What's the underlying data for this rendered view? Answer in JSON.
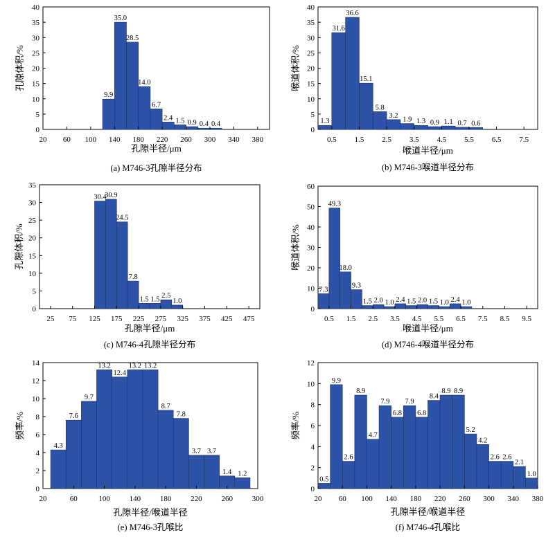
{
  "chart_data": [
    {
      "type": "bar",
      "title": "",
      "caption": "(a) M746-3孔隙半径分布",
      "xlabel": "孔隙半径/μm",
      "ylabel": "孔隙体积/%",
      "ylim": [
        0,
        40
      ],
      "yticks": [
        0,
        5,
        10,
        15,
        20,
        25,
        30,
        35,
        40
      ],
      "xlim": [
        20,
        400
      ],
      "xticks": [
        20,
        60,
        100,
        140,
        180,
        220,
        260,
        300,
        340,
        380
      ],
      "xtick_labels": [
        "20",
        "60",
        "100",
        "140",
        "180",
        "220",
        "260",
        "300",
        "340",
        "380"
      ],
      "bar_width": 20,
      "x": [
        110,
        130,
        150,
        170,
        190,
        210,
        230,
        250,
        270,
        290,
        310
      ],
      "values": [
        0,
        9.9,
        35.0,
        28.5,
        14.0,
        6.7,
        2.4,
        1.5,
        0.9,
        0.4,
        0.4
      ],
      "labels": [
        "",
        "9.9",
        "35.0",
        "28.5",
        "14.0",
        "6.7",
        "2.4",
        "1.5",
        "0.9",
        "0.4",
        "0.4"
      ],
      "color": "#2d53a8",
      "grid": false
    },
    {
      "type": "bar",
      "title": "",
      "caption": "(b) M746-3喉道半径分布",
      "xlabel": "喉道半径/μm",
      "ylabel": "喉道体积/%",
      "ylim": [
        0,
        40
      ],
      "yticks": [
        0,
        5,
        10,
        15,
        20,
        25,
        30,
        35,
        40
      ],
      "xlim": [
        0,
        8
      ],
      "xticks": [
        0.5,
        1.5,
        2.5,
        3.5,
        4.5,
        5.5,
        6.5,
        7.5
      ],
      "xtick_labels": [
        "0.5",
        "1.5",
        "2.5",
        "3.5",
        "4.5",
        "5.5",
        "6.5",
        "7.5"
      ],
      "bar_width": 0.5,
      "x": [
        0.25,
        0.75,
        1.25,
        1.75,
        2.25,
        2.75,
        3.25,
        3.75,
        4.25,
        4.75,
        5.25,
        5.75
      ],
      "values": [
        1.3,
        31.6,
        36.6,
        15.1,
        5.8,
        3.2,
        1.9,
        1.3,
        0.9,
        1.1,
        0.7,
        0.6
      ],
      "labels": [
        "1.3",
        "31.6",
        "36.6",
        "15.1",
        "5.8",
        "3.2",
        "1.9",
        "1.3",
        "0.9",
        "1.1",
        "0.7",
        "0.6"
      ],
      "color": "#2d53a8",
      "grid": false
    },
    {
      "type": "bar",
      "title": "",
      "caption": "(c) M746-4孔隙半径分布",
      "xlabel": "孔隙半径/μm",
      "ylabel": "孔隙体积/%",
      "ylim": [
        0,
        35
      ],
      "yticks": [
        0,
        5,
        10,
        15,
        20,
        25,
        30,
        35
      ],
      "xlim": [
        0,
        500
      ],
      "xticks": [
        25,
        75,
        125,
        175,
        225,
        275,
        325,
        375,
        425,
        475
      ],
      "xtick_labels": [
        "25",
        "75",
        "125",
        "175",
        "225",
        "275",
        "325",
        "375",
        "425",
        "475"
      ],
      "bar_width": 25,
      "x": [
        137.5,
        162.5,
        187.5,
        212.5,
        237.5,
        262.5,
        287.5,
        312.5
      ],
      "values": [
        30.4,
        30.9,
        24.5,
        7.8,
        1.5,
        1.5,
        2.5,
        1.0
      ],
      "labels": [
        "30.4",
        "30.9",
        "24.5",
        "7.8",
        "1.5",
        "1.5",
        "2.5",
        "1.0"
      ],
      "color": "#2d53a8",
      "grid": false
    },
    {
      "type": "bar",
      "title": "",
      "caption": "(d) M746-4喉道半径分布",
      "xlabel": "喉道半径/μm",
      "ylabel": "喉道体积/%",
      "ylim": [
        0,
        60
      ],
      "yticks": [
        0,
        10,
        20,
        30,
        40,
        50,
        60
      ],
      "xlim": [
        0,
        10
      ],
      "xticks": [
        0.5,
        1.5,
        2.5,
        3.5,
        4.5,
        5.5,
        6.5,
        7.5,
        8.5,
        9.5
      ],
      "xtick_labels": [
        "0.5",
        "1.5",
        "2.5",
        "3.5",
        "4.5",
        "5.5",
        "6.5",
        "7.5",
        "8.5",
        "9.5"
      ],
      "bar_width": 0.5,
      "x": [
        0.25,
        0.75,
        1.25,
        1.75,
        2.25,
        2.75,
        3.25,
        3.75,
        4.25,
        4.75,
        5.25,
        5.75,
        6.25,
        6.75
      ],
      "values": [
        7.3,
        49.3,
        18.0,
        9.3,
        1.5,
        2.0,
        1.0,
        2.4,
        1.5,
        2.0,
        1.5,
        1.0,
        2.4,
        1.0
      ],
      "labels": [
        "7.3",
        "49.3",
        "18.0",
        "9.3",
        "1.5",
        "2.0",
        "1.0",
        "2.4",
        "1.5",
        "2.0",
        "1.5",
        "1.0",
        "2.4",
        "1.0"
      ],
      "color": "#2d53a8",
      "grid": false
    },
    {
      "type": "bar",
      "title": "",
      "caption": "(e) M746-3孔喉比",
      "xlabel": "孔隙半径/喉道半径",
      "ylabel": "频率/%",
      "ylim": [
        0,
        14
      ],
      "yticks": [
        0,
        2,
        4,
        6,
        8,
        10,
        12,
        14
      ],
      "xlim": [
        20,
        300
      ],
      "xticks": [
        20,
        60,
        100,
        140,
        180,
        220,
        260,
        300
      ],
      "xtick_labels": [
        "20",
        "60",
        "100",
        "140",
        "180",
        "220",
        "260",
        "300"
      ],
      "bar_width": 20,
      "x": [
        40,
        60,
        80,
        100,
        120,
        140,
        160,
        180,
        200,
        220,
        240,
        260,
        280
      ],
      "values": [
        4.3,
        7.6,
        9.7,
        13.2,
        12.4,
        13.2,
        13.2,
        8.7,
        7.8,
        3.7,
        3.7,
        1.4,
        1.2
      ],
      "labels": [
        "4.3",
        "7.6",
        "9.7",
        "13.2",
        "12.4",
        "13.2",
        "13.2",
        "8.7",
        "7.8",
        "3.7",
        "3.7",
        "1.4",
        "1.2"
      ],
      "color": "#2d53a8",
      "grid": false
    },
    {
      "type": "bar",
      "title": "",
      "caption": "(f) M746-4孔喉比",
      "xlabel": "孔隙半径/喉道半径",
      "ylabel": "频率/%",
      "ylim": [
        0,
        12
      ],
      "yticks": [
        0,
        2,
        4,
        6,
        8,
        10,
        12
      ],
      "xlim": [
        20,
        380
      ],
      "xticks": [
        20,
        60,
        100,
        140,
        180,
        220,
        260,
        300,
        340,
        380
      ],
      "xtick_labels": [
        "20",
        "60",
        "100",
        "140",
        "180",
        "220",
        "260",
        "300",
        "340",
        "380"
      ],
      "bar_width": 20,
      "x": [
        30,
        50,
        70,
        90,
        110,
        130,
        150,
        170,
        190,
        210,
        230,
        250,
        270,
        290,
        310,
        330,
        350,
        370
      ],
      "values": [
        0.5,
        9.9,
        2.6,
        8.9,
        4.7,
        7.9,
        6.8,
        7.9,
        6.8,
        8.4,
        8.9,
        8.9,
        5.2,
        4.2,
        2.6,
        2.6,
        2.1,
        1.0
      ],
      "labels": [
        "0.5",
        "9.9",
        "2.6",
        "8.9",
        "4.7",
        "7.9",
        "6.8",
        "7.9",
        "6.8",
        "8.4",
        "8.9",
        "8.9",
        "5.2",
        "4.2",
        "2.6",
        "2.6",
        "2.1",
        "1.0"
      ],
      "color": "#2d53a8",
      "grid": false
    }
  ]
}
